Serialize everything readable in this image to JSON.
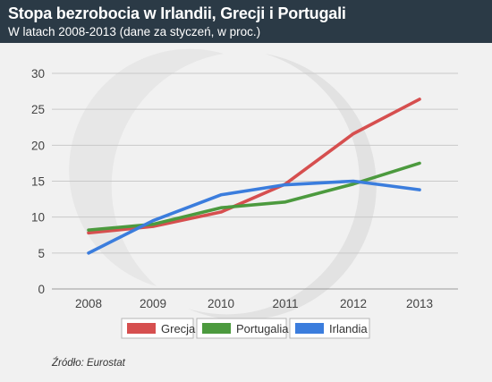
{
  "header": {
    "title": "Stopa bezrobocia w Irlandii, Grecji i Portugali",
    "subtitle": "W latach 2008-2013 (dane za styczeń, w proc.)"
  },
  "source": "Źródło: Eurostat",
  "chart_data": {
    "type": "line",
    "title": "Stopa bezrobocia w Irlandii, Grecji i Portugali",
    "subtitle": "W latach 2008-2013 (dane za styczeń, w proc.)",
    "xlabel": "",
    "ylabel": "",
    "categories": [
      "2008",
      "2009",
      "2010",
      "2011",
      "2012",
      "2013"
    ],
    "ylim": [
      0,
      30
    ],
    "yticks": [
      0,
      5,
      10,
      15,
      20,
      25,
      30
    ],
    "grid": "horizontal",
    "legend_position": "bottom",
    "series": [
      {
        "name": "Grecja",
        "color": "#d64f4f",
        "values": [
          7.8,
          8.7,
          10.7,
          14.6,
          21.6,
          26.4
        ]
      },
      {
        "name": "Portugalia",
        "color": "#4c9a3e",
        "values": [
          8.2,
          9.0,
          11.3,
          12.1,
          14.6,
          17.5
        ]
      },
      {
        "name": "Irlandia",
        "color": "#3b7ddd",
        "values": [
          5.0,
          9.5,
          13.1,
          14.5,
          15.0,
          13.8
        ]
      }
    ]
  }
}
